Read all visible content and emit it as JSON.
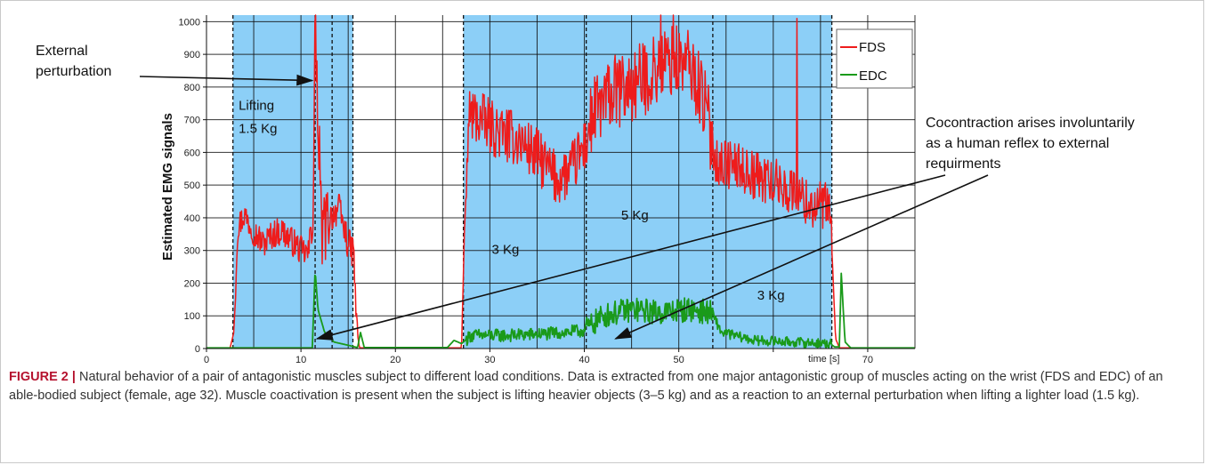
{
  "figure": {
    "caption_label": "FIGURE 2 |",
    "caption_text": " Natural behavior of a pair of antagonistic muscles subject to different load conditions. Data is extracted from one major antagonistic group of muscles acting on the wrist (FDS and EDC) of an able-bodied subject (female, age 32). Muscle coactivation is present when the subject is lifting heavier objects (3–5 kg) and as a reaction to an external perturbation when lifting a lighter load (1.5 kg)."
  },
  "chart_data": {
    "type": "line",
    "ylabel": "Estimated EMG signals",
    "xlabel": "time [s]",
    "xlim": [
      0,
      75
    ],
    "ylim": [
      0,
      1020
    ],
    "x_ticks": [
      0,
      10,
      20,
      30,
      40,
      50,
      60,
      70
    ],
    "y_ticks": [
      0,
      100,
      200,
      300,
      400,
      500,
      600,
      700,
      800,
      900,
      1000
    ],
    "grid": true,
    "legend_position": "top-right",
    "shaded_intervals": [
      [
        2.8,
        15.5
      ],
      [
        27.2,
        66.2
      ]
    ],
    "dashed_lines": [
      2.8,
      11.5,
      13.3,
      15.5,
      27.2,
      40.2,
      53.6,
      66.2
    ],
    "region_labels": [
      {
        "text": "Lifting",
        "x": 3.4,
        "y": 730
      },
      {
        "text": "1.5 Kg",
        "x": 3.4,
        "y": 660
      },
      {
        "text": "3 Kg",
        "x": 30.2,
        "y": 290
      },
      {
        "text": "5 Kg",
        "x": 43.9,
        "y": 395
      },
      {
        "text": "3 Kg",
        "x": 58.3,
        "y": 150
      }
    ],
    "series": [
      {
        "name": "FDS",
        "color": "#ee1c1c",
        "keypoints": [
          [
            0,
            2
          ],
          [
            2.5,
            2
          ],
          [
            2.9,
            50
          ],
          [
            3.3,
            370
          ],
          [
            4,
            410
          ],
          [
            5,
            360
          ],
          [
            6,
            320
          ],
          [
            7,
            350
          ],
          [
            8,
            360
          ],
          [
            9,
            330
          ],
          [
            10,
            300
          ],
          [
            10.8,
            290
          ],
          [
            11.3,
            450
          ],
          [
            11.5,
            1000
          ],
          [
            11.8,
            600
          ],
          [
            12.2,
            350
          ],
          [
            13,
            400
          ],
          [
            14,
            430
          ],
          [
            15,
            320
          ],
          [
            15.6,
            290
          ],
          [
            15.9,
            60
          ],
          [
            16.2,
            2
          ],
          [
            27,
            2
          ],
          [
            27.3,
            350
          ],
          [
            27.8,
            720
          ],
          [
            29,
            700
          ],
          [
            31,
            660
          ],
          [
            33,
            640
          ],
          [
            35,
            590
          ],
          [
            37,
            520
          ],
          [
            38.5,
            540
          ],
          [
            40,
            620
          ],
          [
            41,
            720
          ],
          [
            43,
            780
          ],
          [
            45,
            800
          ],
          [
            47,
            840
          ],
          [
            49,
            880
          ],
          [
            51,
            870
          ],
          [
            52.5,
            780
          ],
          [
            53.5,
            640
          ],
          [
            54,
            570
          ],
          [
            56,
            560
          ],
          [
            58,
            530
          ],
          [
            60,
            510
          ],
          [
            62,
            480
          ],
          [
            64,
            440
          ],
          [
            66,
            430
          ],
          [
            66.3,
            240
          ],
          [
            66.6,
            30
          ],
          [
            67,
            2
          ],
          [
            75,
            2
          ]
        ],
        "noise": [
          [
            3,
            11,
            45
          ],
          [
            11,
            13,
            110
          ],
          [
            13,
            16,
            50
          ],
          [
            27.5,
            40,
            85
          ],
          [
            40,
            53.6,
            115
          ],
          [
            53.6,
            66.2,
            75
          ]
        ],
        "spikes": [
          [
            11.5,
            1000
          ],
          [
            11.7,
            880
          ],
          [
            12.0,
            680
          ],
          [
            48.1,
            1020
          ],
          [
            49.4,
            1020
          ],
          [
            62.5,
            1010
          ]
        ]
      },
      {
        "name": "EDC",
        "color": "#1a9a1a",
        "keypoints": [
          [
            0,
            2
          ],
          [
            11.2,
            2
          ],
          [
            11.5,
            240
          ],
          [
            11.8,
            120
          ],
          [
            12.5,
            50
          ],
          [
            13.5,
            20
          ],
          [
            15,
            10
          ],
          [
            16,
            3
          ],
          [
            16.3,
            50
          ],
          [
            16.7,
            3
          ],
          [
            17.5,
            3
          ],
          [
            25.5,
            3
          ],
          [
            26.2,
            25
          ],
          [
            27,
            15
          ],
          [
            28,
            40
          ],
          [
            32,
            40
          ],
          [
            36,
            45
          ],
          [
            40,
            55
          ],
          [
            42,
            100
          ],
          [
            45,
            120
          ],
          [
            48,
            110
          ],
          [
            51,
            120
          ],
          [
            53.5,
            110
          ],
          [
            54.5,
            50
          ],
          [
            58,
            25
          ],
          [
            62,
            20
          ],
          [
            66,
            15
          ],
          [
            66.5,
            5
          ],
          [
            67,
            5
          ],
          [
            67.2,
            230
          ],
          [
            67.6,
            20
          ],
          [
            68.2,
            2
          ],
          [
            75,
            2
          ]
        ],
        "noise": [
          [
            27.5,
            40,
            20
          ],
          [
            40,
            53.6,
            38
          ],
          [
            53.6,
            66.2,
            15
          ]
        ],
        "spikes": []
      }
    ],
    "annotations": [
      {
        "text": "External",
        "text2": "perturbation",
        "target": [
          11.2,
          820
        ]
      },
      {
        "text": "Cocontraction arises involuntarily",
        "text2": "as a human reflex to external",
        "text3": "requirments",
        "targets": [
          [
            11.7,
            30
          ],
          [
            43.3,
            30
          ]
        ]
      }
    ]
  }
}
